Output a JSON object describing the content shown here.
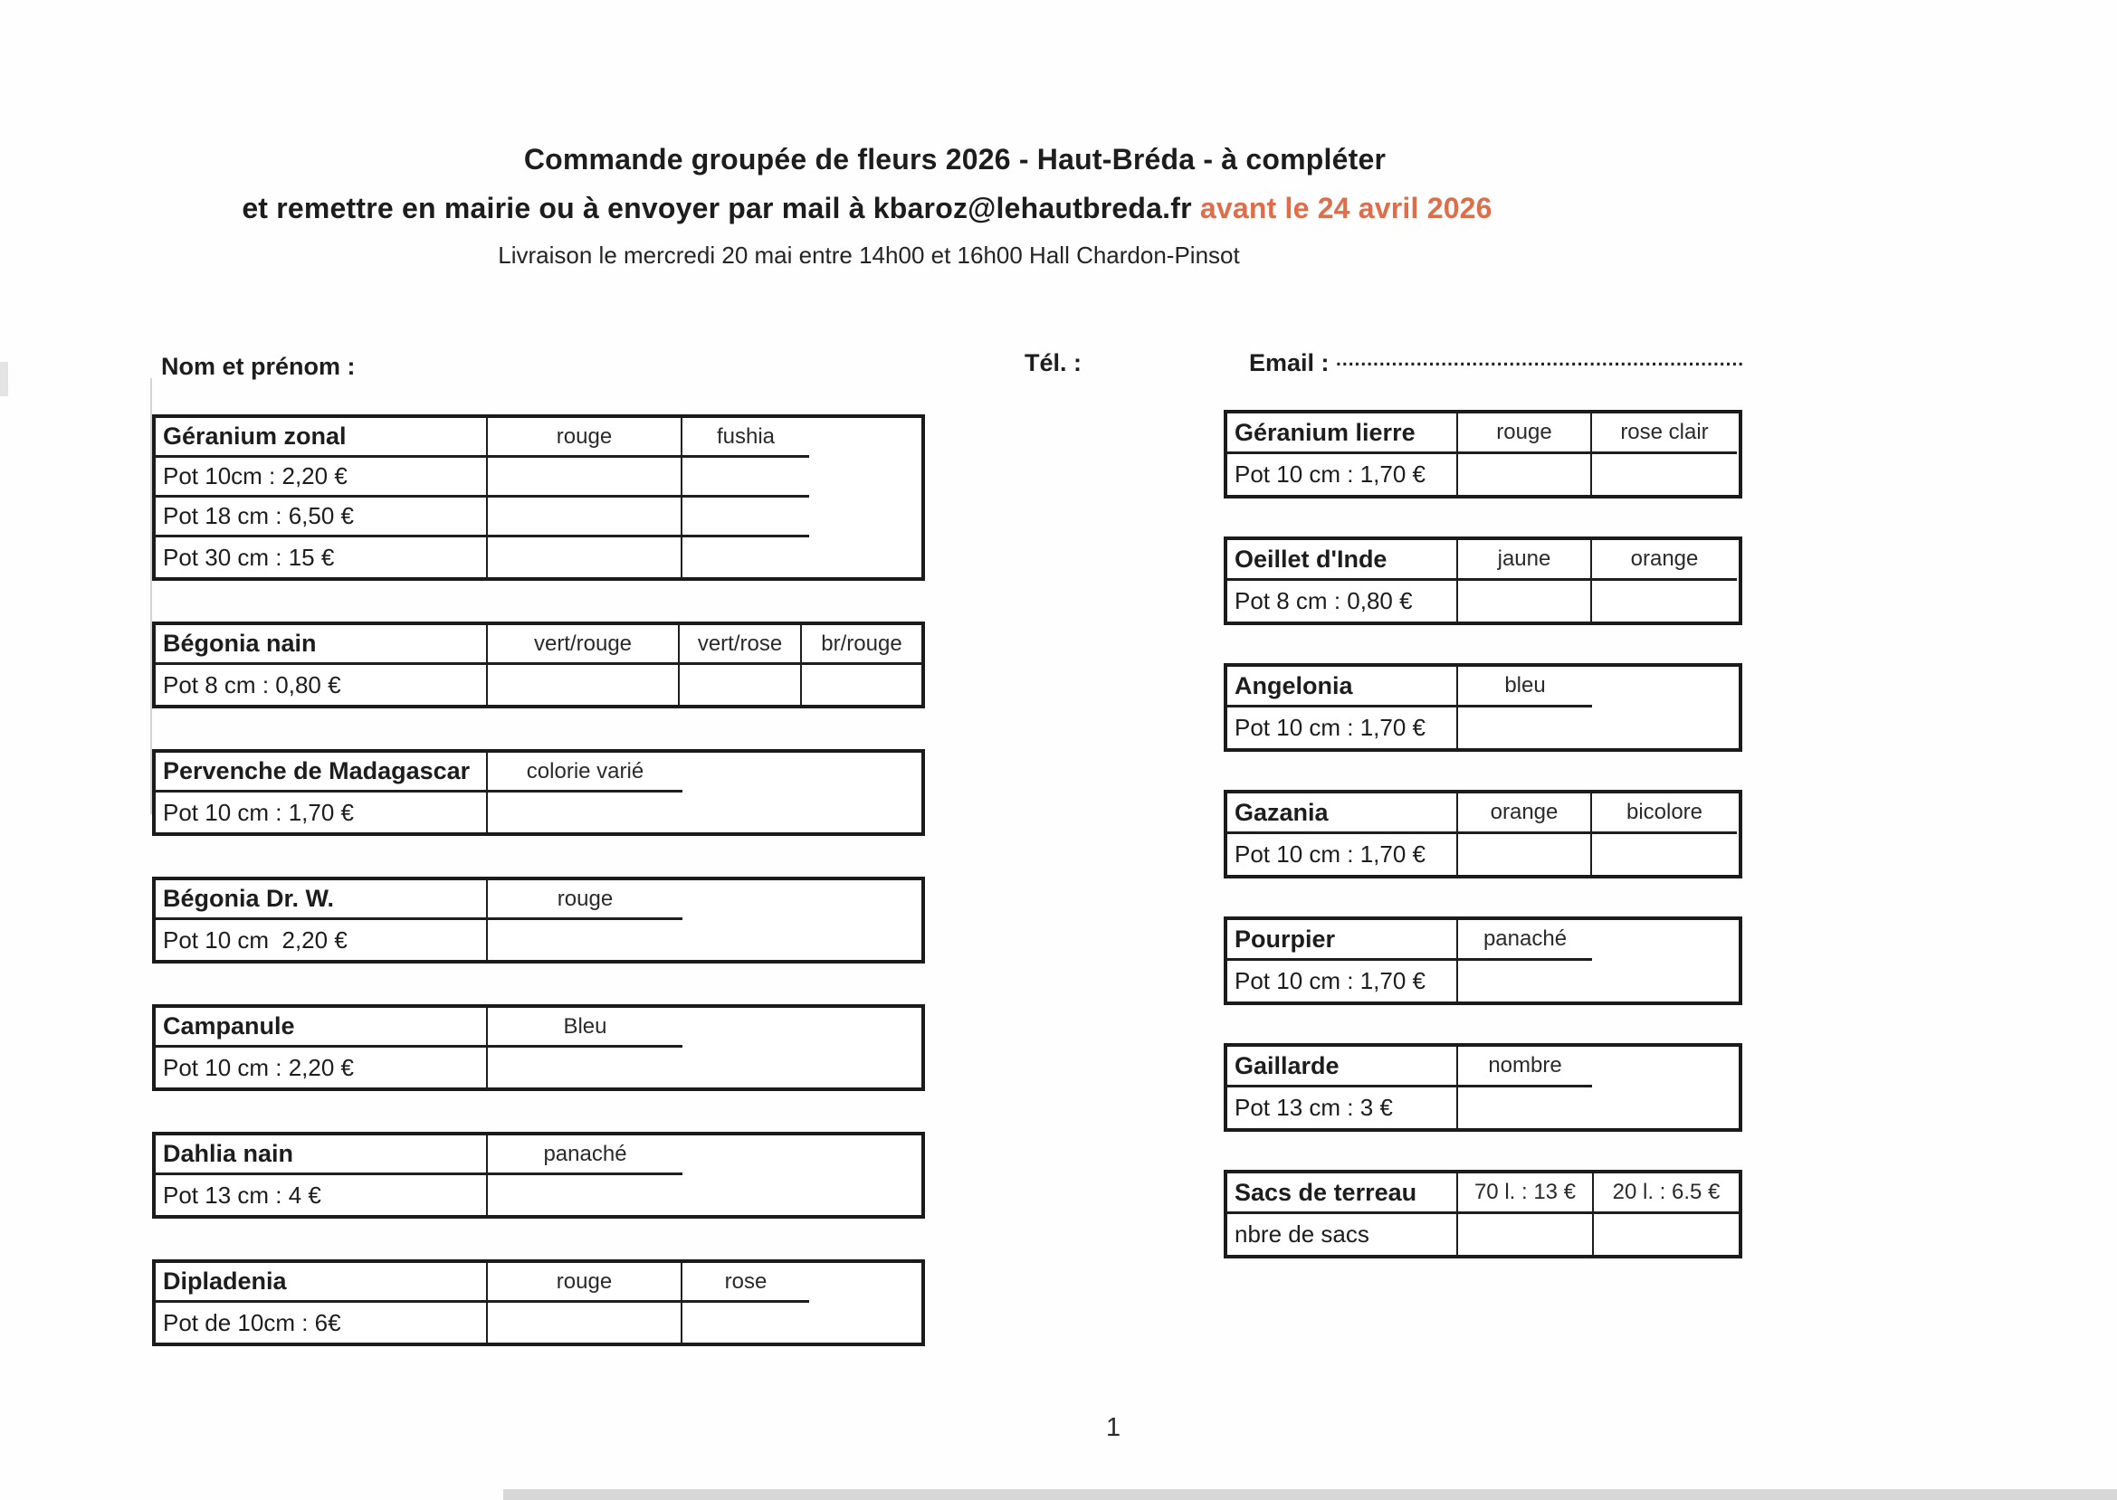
{
  "header": {
    "title_line1": "Commande groupée de fleurs 2026 - Haut-Bréda - à compléter",
    "title_line2_prefix": "et remettre en mairie ou à envoyer par mail à kbaroz@lehautbreda.fr ",
    "title_line2_deadline": "avant le 24 avril 2026",
    "deadline_color": "#e06d4a",
    "subtitle": "Livraison le mercredi 20 mai entre 14h00 et 16h00 Hall Chardon-Pinsot"
  },
  "form": {
    "name_label": "Nom et prénom :",
    "tel_label": "Tél. :",
    "email_label": "Email :",
    "email_dots": "........................................................................................................................"
  },
  "tables_left": [
    {
      "name": "Géranium zonal",
      "columns": [
        "rouge",
        "fushia"
      ],
      "rows": [
        "Pot 10cm : 2,20 €",
        "Pot 18 cm : 6,50 €",
        "Pot 30 cm : 15 €"
      ]
    },
    {
      "name": "Bégonia nain",
      "columns": [
        "vert/rouge",
        "vert/rose",
        "br/rouge"
      ],
      "rows": [
        "Pot 8 cm : 0,80 €"
      ]
    },
    {
      "name": "Pervenche de Madagascar",
      "columns": [
        "colorie varié"
      ],
      "rows": [
        "Pot 10 cm : 1,70 €"
      ]
    },
    {
      "name": "Bégonia Dr. W.",
      "columns": [
        "rouge"
      ],
      "rows": [
        "Pot 10 cm  2,20 €"
      ]
    },
    {
      "name": "Campanule",
      "columns": [
        "Bleu"
      ],
      "rows": [
        "Pot 10 cm : 2,20 €"
      ]
    },
    {
      "name": "Dahlia nain",
      "columns": [
        "panaché"
      ],
      "rows": [
        "Pot 13 cm : 4 €"
      ]
    },
    {
      "name": "Dipladenia",
      "columns": [
        "rouge",
        "rose"
      ],
      "rows": [
        "Pot de 10cm : 6€"
      ]
    }
  ],
  "tables_right": [
    {
      "name": "Géranium lierre",
      "columns": [
        "rouge",
        "rose clair"
      ],
      "rows": [
        "Pot 10 cm : 1,70 €"
      ]
    },
    {
      "name": "Oeillet d'Inde",
      "columns": [
        "jaune",
        "orange"
      ],
      "rows": [
        "Pot 8 cm : 0,80 €"
      ]
    },
    {
      "name": "Angelonia",
      "columns": [
        "bleu"
      ],
      "rows": [
        "Pot 10 cm : 1,70 €"
      ]
    },
    {
      "name": "Gazania",
      "columns": [
        "orange",
        "bicolore"
      ],
      "rows": [
        "Pot 10 cm : 1,70 €"
      ]
    },
    {
      "name": "Pourpier",
      "columns": [
        "panaché"
      ],
      "rows": [
        "Pot 10 cm : 1,70 €"
      ]
    },
    {
      "name": "Gaillarde",
      "columns": [
        "nombre"
      ],
      "rows": [
        "Pot 13 cm : 3 €"
      ]
    },
    {
      "name": "Sacs de terreau",
      "columns": [
        "70 l. : 13 €",
        "20 l. : 6.5 €"
      ],
      "rows": [
        "nbre de sacs"
      ]
    }
  ],
  "page_number": "1"
}
